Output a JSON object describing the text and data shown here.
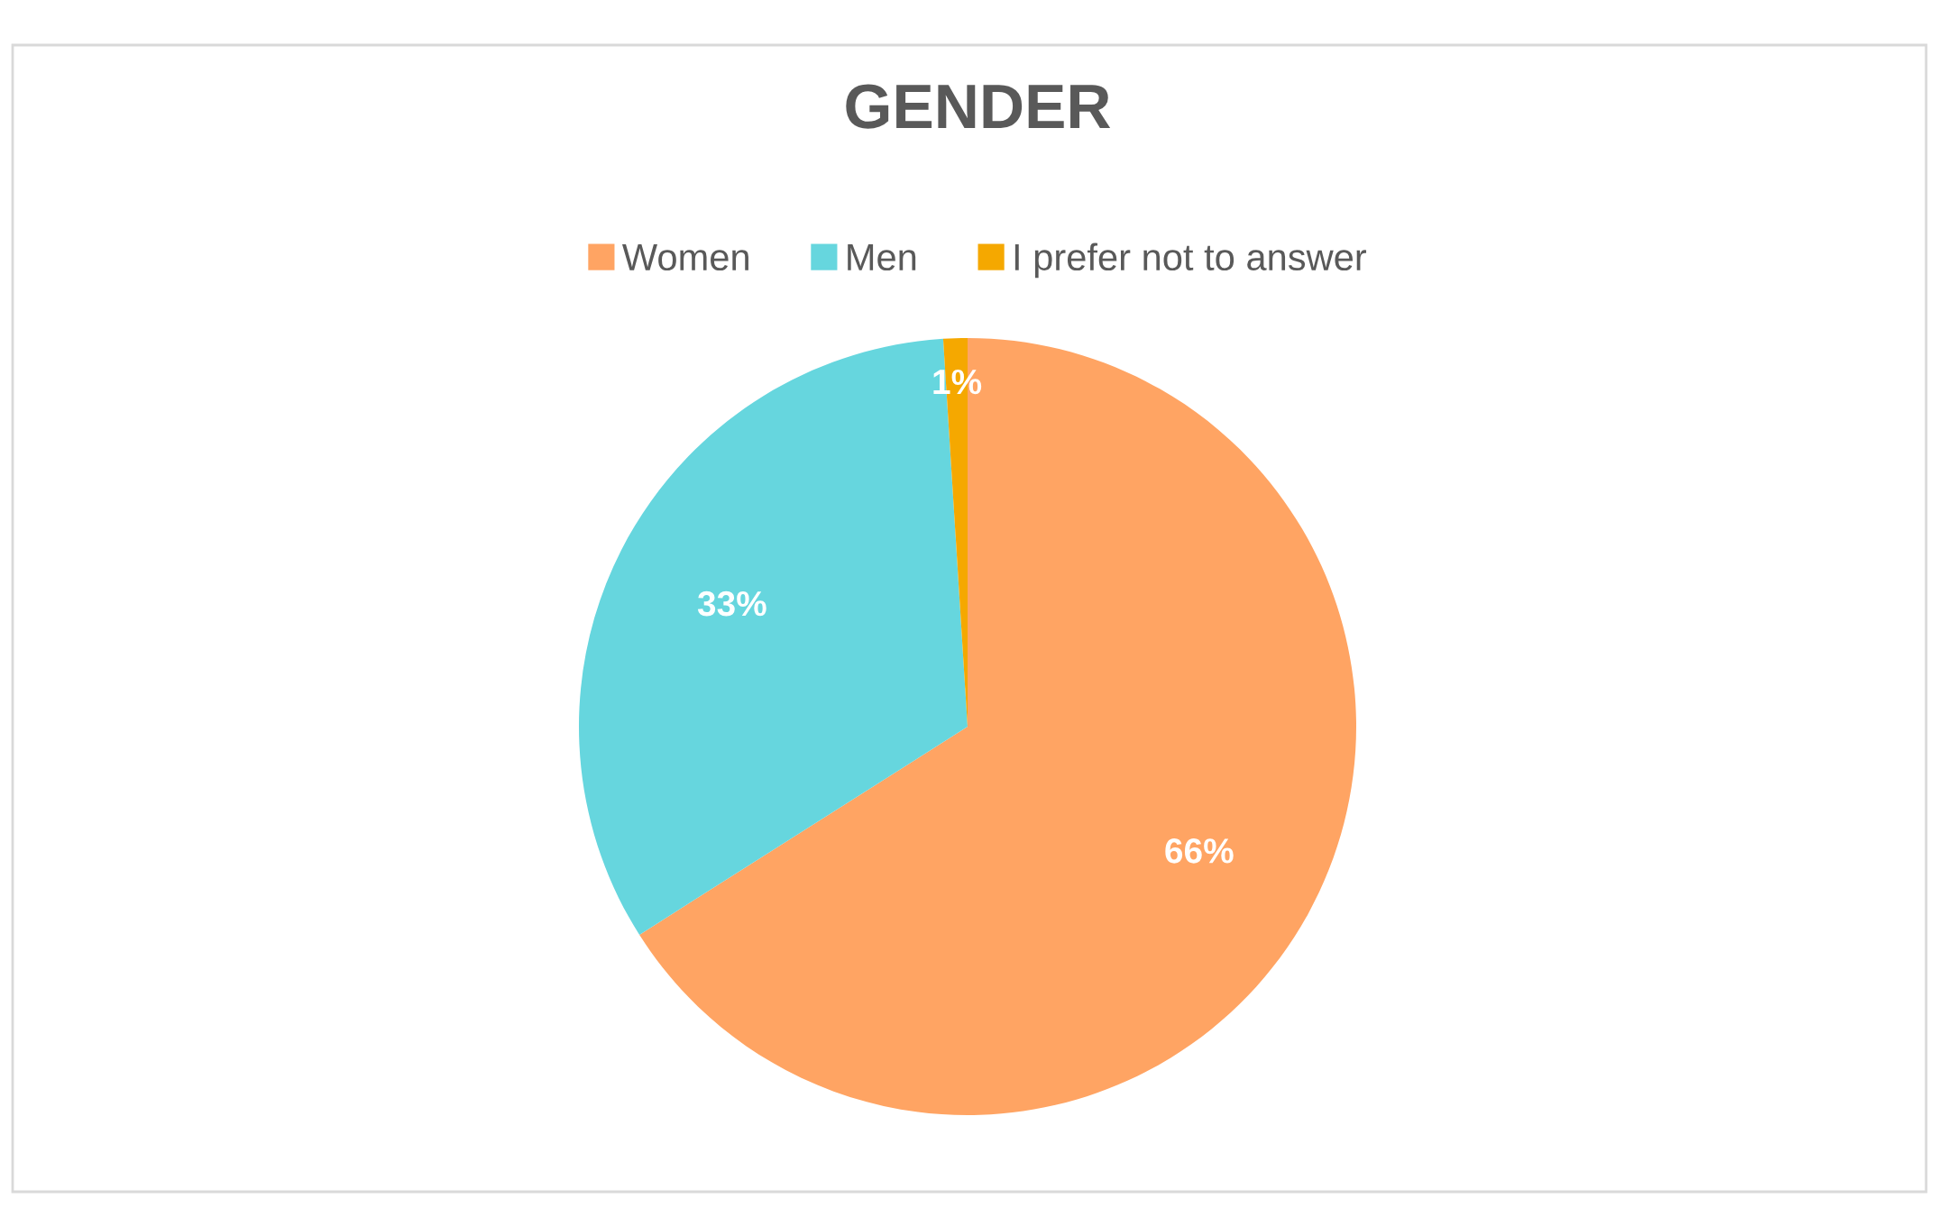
{
  "chart_data": {
    "type": "pie",
    "title": "GENDER",
    "categories": [
      "Women",
      "Men",
      "I prefer not to answer"
    ],
    "values": [
      66,
      33,
      1
    ],
    "colors": [
      "#ffa463",
      "#66d6de",
      "#f5a800"
    ],
    "value_labels": [
      "66%",
      "33%",
      "1%"
    ],
    "legend": "top"
  }
}
